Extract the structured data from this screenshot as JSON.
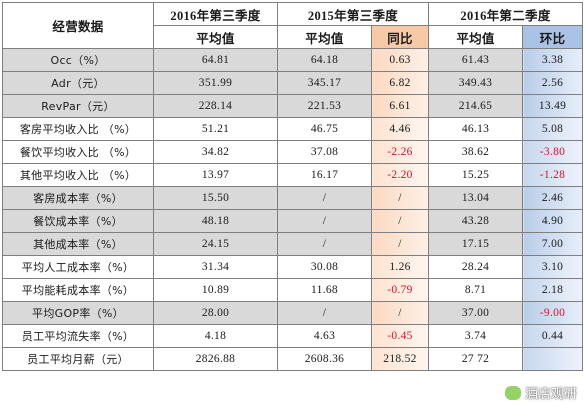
{
  "header": {
    "metric": "经营数据",
    "q3_2016": "2016年第三季度",
    "q3_2015": "2015年第三季度",
    "q2_2016": "2016年第二季度",
    "avg": "平均值",
    "yoy": "同比",
    "qoq": "环比"
  },
  "rows": [
    {
      "label": "Occ（%）",
      "v2016q3": "64.81",
      "v2015q3": "64.18",
      "yoy": "0.63",
      "v2016q2": "61.43",
      "qoq": "3.38",
      "grey": true,
      "yoy_neg": false,
      "qoq_neg": false
    },
    {
      "label": "Adr（元）",
      "v2016q3": "351.99",
      "v2015q3": "345.17",
      "yoy": "6.82",
      "v2016q2": "349.43",
      "qoq": "2.56",
      "grey": true,
      "yoy_neg": false,
      "qoq_neg": false
    },
    {
      "label": "RevPar（元）",
      "v2016q3": "228.14",
      "v2015q3": "221.53",
      "yoy": "6.61",
      "v2016q2": "214.65",
      "qoq": "13.49",
      "grey": true,
      "yoy_neg": false,
      "qoq_neg": false
    },
    {
      "label": "客房平均收入比 （%）",
      "v2016q3": "51.21",
      "v2015q3": "46.75",
      "yoy": "4.46",
      "v2016q2": "46.13",
      "qoq": "5.08",
      "grey": false,
      "yoy_neg": false,
      "qoq_neg": false
    },
    {
      "label": "餐饮平均收入比 （%）",
      "v2016q3": "34.82",
      "v2015q3": "37.08",
      "yoy": "-2.26",
      "v2016q2": "38.62",
      "qoq": "-3.80",
      "grey": false,
      "yoy_neg": true,
      "qoq_neg": true
    },
    {
      "label": "其他平均收入比 （%）",
      "v2016q3": "13.97",
      "v2015q3": "16.17",
      "yoy": "-2.20",
      "v2016q2": "15.25",
      "qoq": "-1.28",
      "grey": false,
      "yoy_neg": true,
      "qoq_neg": true
    },
    {
      "label": "客房成本率（%）",
      "v2016q3": "15.50",
      "v2015q3": "/",
      "yoy": "/",
      "v2016q2": "13.04",
      "qoq": "2.46",
      "grey": true,
      "yoy_neg": false,
      "qoq_neg": false
    },
    {
      "label": "餐饮成本率（%）",
      "v2016q3": "48.18",
      "v2015q3": "/",
      "yoy": "/",
      "v2016q2": "43.28",
      "qoq": "4.90",
      "grey": true,
      "yoy_neg": false,
      "qoq_neg": false
    },
    {
      "label": "其他成本率（%）",
      "v2016q3": "24.15",
      "v2015q3": "/",
      "yoy": "/",
      "v2016q2": "17.15",
      "qoq": "7.00",
      "grey": true,
      "yoy_neg": false,
      "qoq_neg": false
    },
    {
      "label": "平均人工成本率（%）",
      "v2016q3": "31.34",
      "v2015q3": "30.08",
      "yoy": "1.26",
      "v2016q2": "28.24",
      "qoq": "3.10",
      "grey": false,
      "yoy_neg": false,
      "qoq_neg": false
    },
    {
      "label": "平均能耗成本率（%）",
      "v2016q3": "10.89",
      "v2015q3": "11.68",
      "yoy": "-0.79",
      "v2016q2": "8.71",
      "qoq": "2.18",
      "grey": false,
      "yoy_neg": true,
      "qoq_neg": false
    },
    {
      "label": "平均GOP率（%）",
      "v2016q3": "28.00",
      "v2015q3": "/",
      "yoy": "/",
      "v2016q2": "37.00",
      "qoq": "-9.00",
      "grey": true,
      "yoy_neg": false,
      "qoq_neg": true
    },
    {
      "label": "员工平均流失率（%）",
      "v2016q3": "4.18",
      "v2015q3": "4.63",
      "yoy": "-0.45",
      "v2016q2": "3.74",
      "qoq": "0.44",
      "grey": false,
      "yoy_neg": true,
      "qoq_neg": false
    },
    {
      "label": "员工平均月薪（元）",
      "v2016q3": "2826.88",
      "v2015q3": "2608.36",
      "yoy": "218.52",
      "v2016q2": "27  72",
      "qoq": "",
      "grey": false,
      "yoy_neg": false,
      "qoq_neg": false
    }
  ],
  "watermark": {
    "text": "酒店观研",
    "icon": "wechat-icon"
  },
  "colors": {
    "grey_row": "#d9d9d9",
    "yoy_col": "#fde3d1",
    "qoq_col": "#c6d7ee",
    "negative": "#e0102c"
  }
}
